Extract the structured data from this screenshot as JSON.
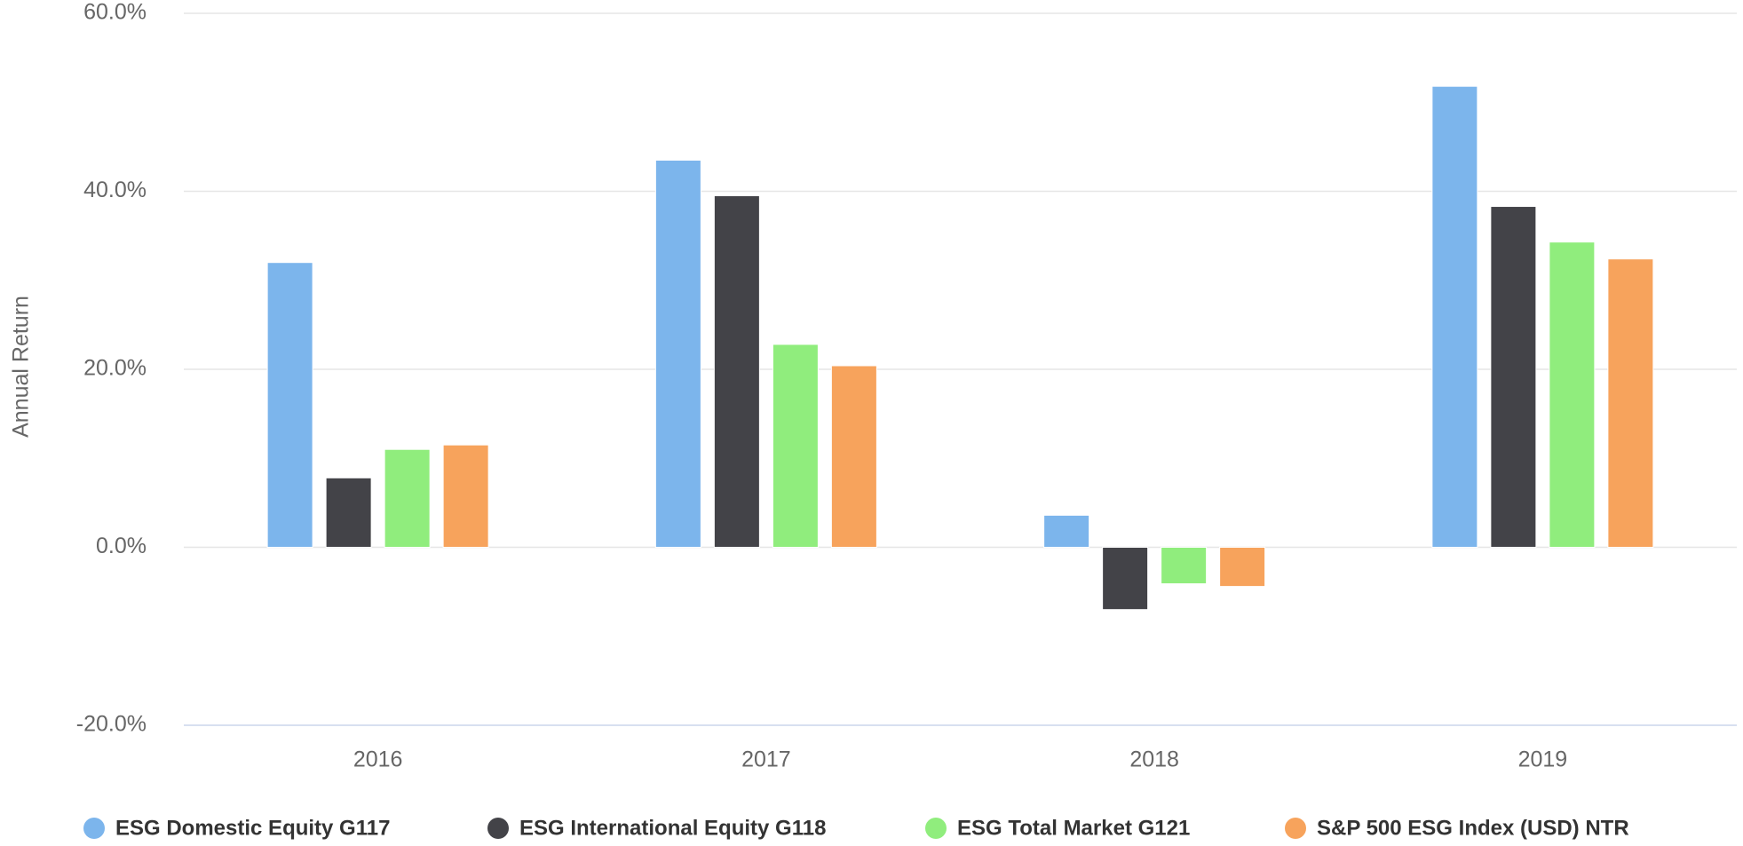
{
  "chart_data": {
    "type": "bar",
    "y_axis_label": "Annual Return",
    "categories": [
      "2016",
      "2017",
      "2018",
      "2019"
    ],
    "series": [
      {
        "name": "ESG Domestic Equity G117",
        "color": "#7cb5ec",
        "values": [
          32.0,
          43.5,
          3.6,
          51.8
        ]
      },
      {
        "name": "ESG International Equity G118",
        "color": "#434348",
        "values": [
          7.8,
          39.5,
          -7.0,
          38.3
        ]
      },
      {
        "name": "ESG Total Market G121",
        "color": "#90ed7d",
        "values": [
          11.0,
          22.8,
          -4.1,
          34.3
        ]
      },
      {
        "name": "S&P 500 ESG Index (USD) NTR",
        "color": "#f7a35c",
        "values": [
          11.5,
          20.4,
          -4.4,
          32.4
        ]
      }
    ],
    "ylim": [
      -20,
      60
    ],
    "yticks": [
      {
        "value": -20,
        "label": "-20.0%"
      },
      {
        "value": 0,
        "label": "0.0%"
      },
      {
        "value": 20,
        "label": "20.0%"
      },
      {
        "value": 40,
        "label": "40.0%"
      },
      {
        "value": 60,
        "label": "60.0%"
      }
    ],
    "grid": true
  }
}
